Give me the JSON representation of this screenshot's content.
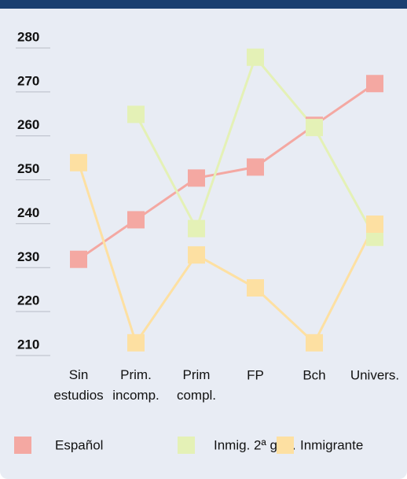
{
  "chart_data": {
    "type": "line",
    "categories": [
      "Sin estudios",
      "Prim. incomp.",
      "Prim compl.",
      "FP",
      "Bch",
      "Univers."
    ],
    "series": [
      {
        "name": "Español",
        "color": "#f4a8a2",
        "values": [
          231,
          240,
          249.5,
          252,
          261.5,
          271
        ]
      },
      {
        "name": "Inmig. 2ª gen.",
        "color": "#e4f1b6",
        "values": [
          null,
          264,
          238,
          277,
          261,
          236
        ]
      },
      {
        "name": "Inmigrante",
        "color": "#fde0a2",
        "values": [
          253,
          212,
          232,
          224.5,
          212,
          239
        ]
      }
    ],
    "ylim": [
      210,
      280
    ],
    "yticks": [
      210,
      220,
      230,
      240,
      250,
      260,
      270,
      280
    ],
    "grid": true
  }
}
